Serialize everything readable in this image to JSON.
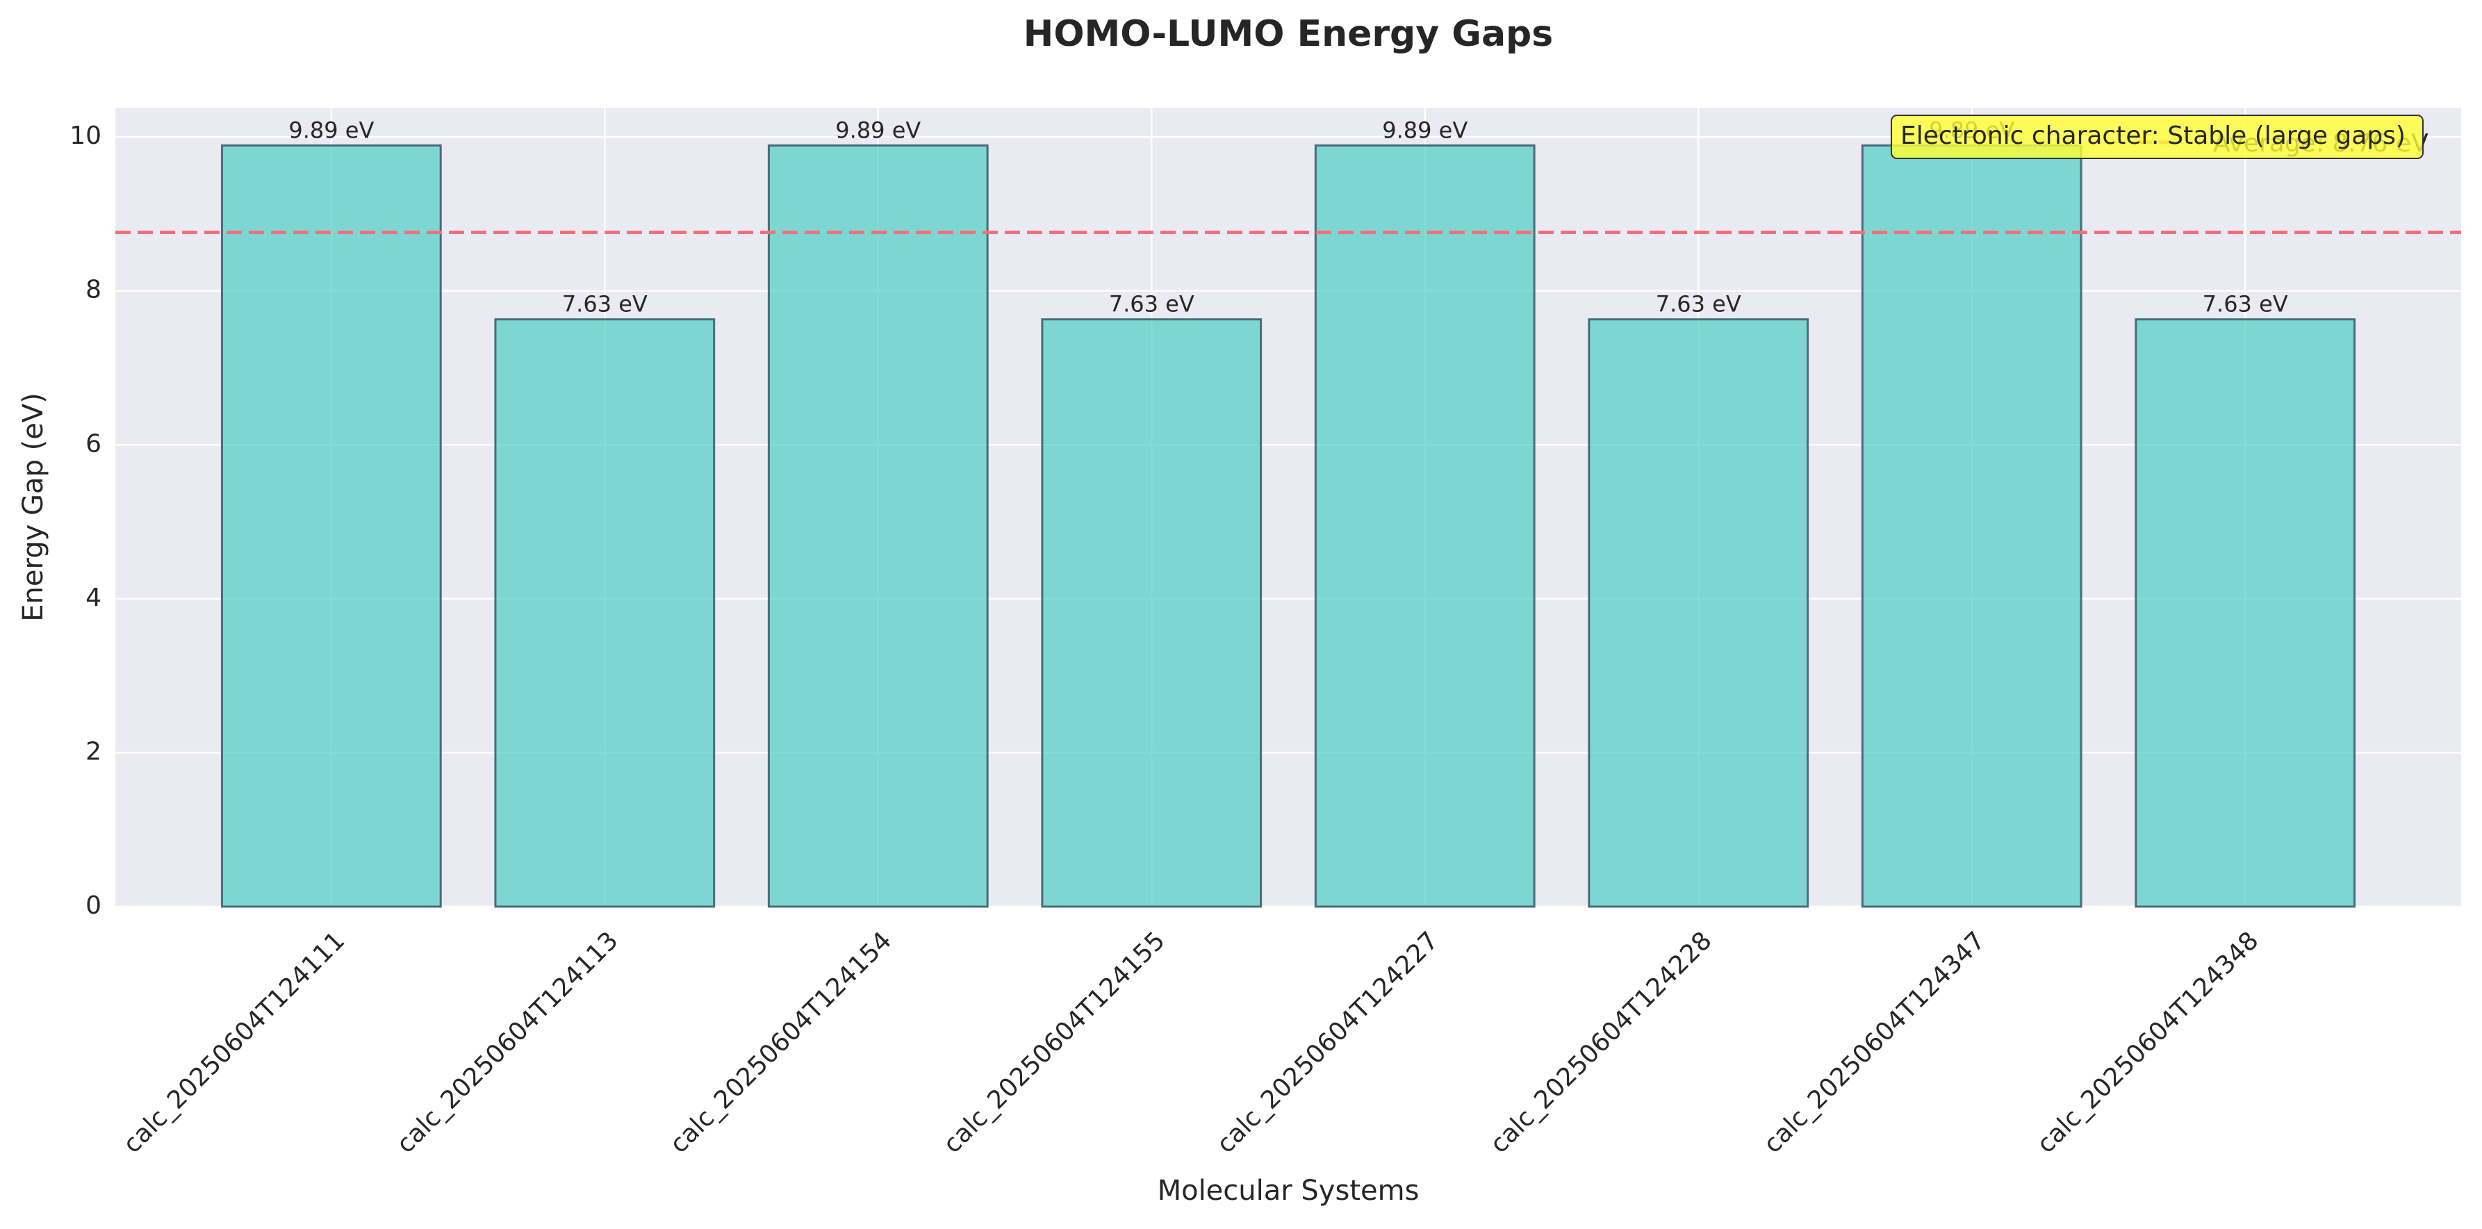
{
  "chart_data": {
    "type": "bar",
    "title": "HOMO-LUMO Energy Gaps",
    "x_label": "Molecular Systems",
    "y_label": "Energy Gap (eV)",
    "categories": [
      "calc_20250604T124111",
      "calc_20250604T124113",
      "calc_20250604T124154",
      "calc_20250604T124155",
      "calc_20250604T124227",
      "calc_20250604T124228",
      "calc_20250604T124347",
      "calc_20250604T124348"
    ],
    "values": [
      9.89,
      7.63,
      9.89,
      7.63,
      9.89,
      7.63,
      9.89,
      7.63
    ],
    "value_labels": [
      "9.89 eV",
      "7.63 eV",
      "9.89 eV",
      "7.63 eV",
      "9.89 eV",
      "7.63 eV",
      "9.89 eV",
      "7.63 eV"
    ],
    "color": "#4ecdc4",
    "edge_color": "#2f4f5f",
    "ylim": [
      0,
      10.38
    ],
    "yticks": [
      0,
      2,
      4,
      6,
      8,
      10
    ],
    "grid": true,
    "reference_line": {
      "value": 8.76,
      "label": "Average: 8.76 eV",
      "color": "#f0707a"
    },
    "legend": "upper right",
    "annotation": "Electronic character: Stable (large gaps)"
  }
}
